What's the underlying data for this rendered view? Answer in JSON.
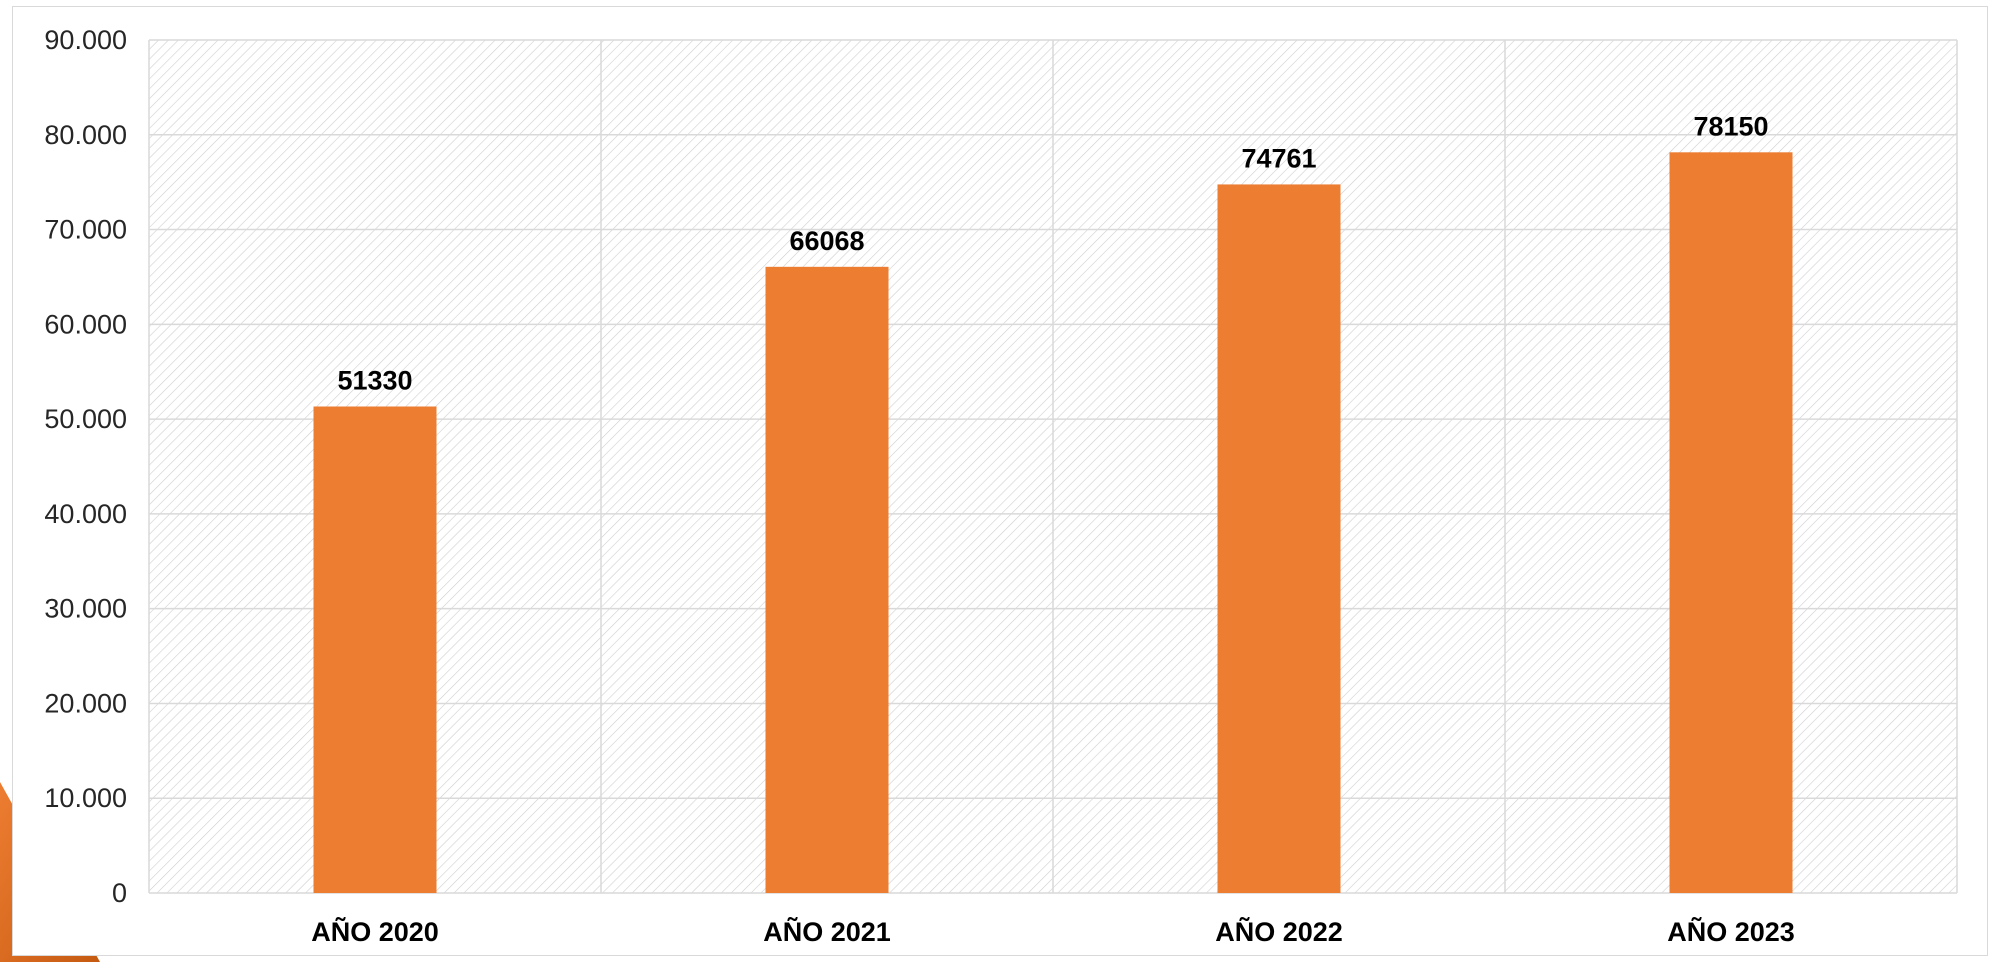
{
  "chart_data": {
    "type": "bar",
    "categories": [
      "AÑO 2020",
      "AÑO 2021",
      "AÑO 2022",
      "AÑO 2023"
    ],
    "values": [
      51330,
      66068,
      74761,
      78150
    ],
    "data_labels": [
      "51330",
      "66068",
      "74761",
      "78150"
    ],
    "ylim": [
      0,
      90000
    ],
    "yticks": [
      0,
      10000,
      20000,
      30000,
      40000,
      50000,
      60000,
      70000,
      80000,
      90000
    ],
    "ytick_labels": [
      "0",
      "10.000",
      "20.000",
      "30.000",
      "40.000",
      "50.000",
      "60.000",
      "70.000",
      "80.000",
      "90.000"
    ],
    "title": "",
    "xlabel": "",
    "ylabel": "",
    "grid": true,
    "legend": "none",
    "plot_background": "diagonal-hatch",
    "colors": {
      "bar": "#ED7D31",
      "grid": "#D9D9D9",
      "hatch": "#CFCFCF",
      "corner_accent": "#C55A11"
    }
  }
}
